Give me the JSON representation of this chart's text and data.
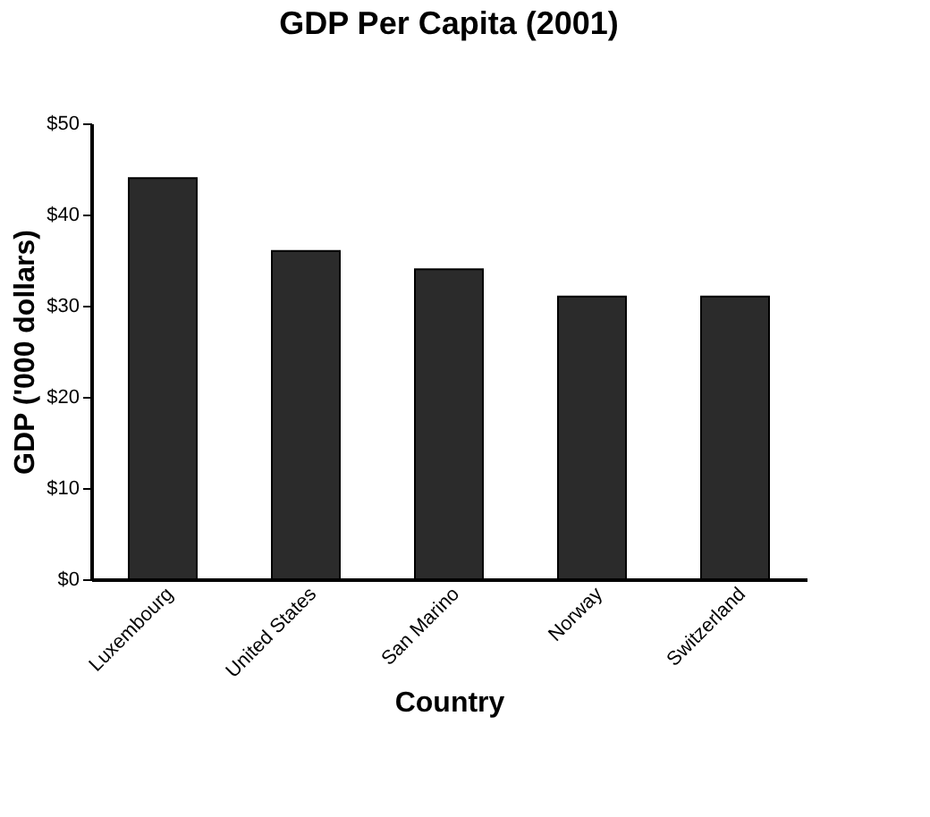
{
  "chart_data": {
    "type": "bar",
    "title": "GDP Per Capita (2001)",
    "xlabel": "Country",
    "ylabel": "GDP ('000 dollars)",
    "categories": [
      "Luxembourg",
      "United States",
      "San Marino",
      "Norway",
      "Switzerland"
    ],
    "values": [
      44,
      36,
      34,
      31,
      31
    ],
    "color": "#2b2b2b",
    "ylim": [
      0,
      50
    ],
    "yticks": [
      {
        "value": 0,
        "label": "$0"
      },
      {
        "value": 10,
        "label": "$10"
      },
      {
        "value": 20,
        "label": "$20"
      },
      {
        "value": 30,
        "label": "$30"
      },
      {
        "value": 40,
        "label": "$40"
      },
      {
        "value": 50,
        "label": "$50"
      }
    ],
    "grid": false
  }
}
